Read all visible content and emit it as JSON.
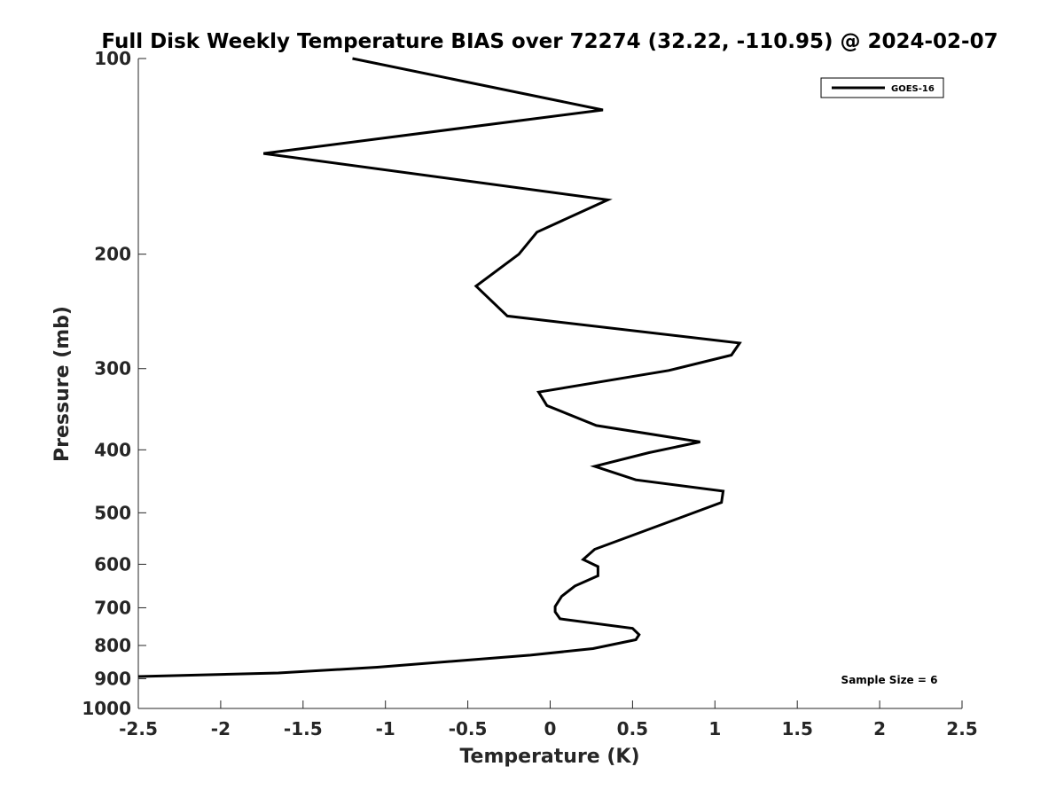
{
  "chart_data": {
    "type": "line",
    "title": "Full Disk Weekly Temperature BIAS over 72274 (32.22, -110.95) @ 2024-02-07",
    "xlabel": "Temperature (K)",
    "ylabel": "Pressure (mb)",
    "xlim": [
      -2.5,
      2.5
    ],
    "ylim": [
      100,
      1000
    ],
    "y_scale": "log",
    "y_reversed": true,
    "x_ticks": [
      "-2.5",
      "-2",
      "-1.5",
      "-1",
      "-0.5",
      "0",
      "0.5",
      "1",
      "1.5",
      "2",
      "2.5"
    ],
    "y_ticks": [
      "100",
      "200",
      "300",
      "400",
      "500",
      "600",
      "700",
      "800",
      "900",
      "1000"
    ],
    "grid": false,
    "legend_position": "top-right",
    "series": [
      {
        "name": "GOES-16",
        "color": "#000000",
        "points": [
          {
            "x": -1.2,
            "p": 100
          },
          {
            "x": 0.32,
            "p": 120
          },
          {
            "x": -1.74,
            "p": 140
          },
          {
            "x": 0.35,
            "p": 165
          },
          {
            "x": -0.08,
            "p": 185
          },
          {
            "x": -0.19,
            "p": 200
          },
          {
            "x": -0.45,
            "p": 224
          },
          {
            "x": -0.26,
            "p": 249
          },
          {
            "x": 1.15,
            "p": 274
          },
          {
            "x": 1.1,
            "p": 286
          },
          {
            "x": 0.72,
            "p": 302
          },
          {
            "x": -0.07,
            "p": 326
          },
          {
            "x": -0.02,
            "p": 342
          },
          {
            "x": 0.28,
            "p": 367
          },
          {
            "x": 0.91,
            "p": 389
          },
          {
            "x": 0.6,
            "p": 404
          },
          {
            "x": 0.27,
            "p": 424
          },
          {
            "x": 0.52,
            "p": 445
          },
          {
            "x": 1.05,
            "p": 463
          },
          {
            "x": 1.04,
            "p": 482
          },
          {
            "x": 0.27,
            "p": 569
          },
          {
            "x": 0.2,
            "p": 590
          },
          {
            "x": 0.29,
            "p": 605
          },
          {
            "x": 0.29,
            "p": 625
          },
          {
            "x": 0.15,
            "p": 648
          },
          {
            "x": 0.07,
            "p": 672
          },
          {
            "x": 0.03,
            "p": 697
          },
          {
            "x": 0.03,
            "p": 710
          },
          {
            "x": 0.06,
            "p": 728
          },
          {
            "x": 0.5,
            "p": 753
          },
          {
            "x": 0.54,
            "p": 770
          },
          {
            "x": 0.52,
            "p": 784
          },
          {
            "x": 0.26,
            "p": 809
          },
          {
            "x": -0.12,
            "p": 828
          },
          {
            "x": -1.05,
            "p": 864
          },
          {
            "x": -1.65,
            "p": 882
          },
          {
            "x": -2.5,
            "p": 893
          }
        ]
      }
    ],
    "annotations": [
      "Sample Size = 6"
    ]
  }
}
